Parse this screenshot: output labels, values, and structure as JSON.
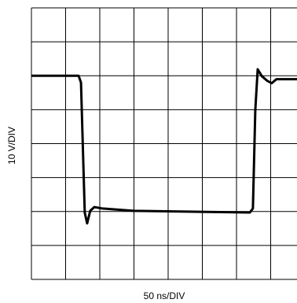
{
  "chart_data": {
    "type": "line",
    "x_label": "50 ns/DIV",
    "y_label": "10 V/DIV",
    "x": [
      0,
      1.38,
      1.45,
      1.56,
      1.63,
      1.72,
      1.84,
      2.07,
      2.99,
      6.39,
      6.48,
      6.55,
      6.62,
      6.74,
      6.9,
      7.03,
      7.17,
      7.47,
      7.77
    ],
    "values": [
      6,
      6,
      5.8,
      1.97,
      1.65,
      2.02,
      2.13,
      2.09,
      2.02,
      1.97,
      2.09,
      4.99,
      6.19,
      5.99,
      5.85,
      5.78,
      5.9,
      5.9,
      5.9
    ],
    "color": "#000000",
    "xlim": [
      0,
      7.77
    ],
    "ylim": [
      0,
      8
    ],
    "xticks": [
      0,
      1,
      2,
      3,
      4,
      5,
      6,
      7
    ],
    "yticks": [
      0,
      1,
      2,
      3,
      4,
      5,
      6,
      7,
      8
    ],
    "grid": true
  }
}
